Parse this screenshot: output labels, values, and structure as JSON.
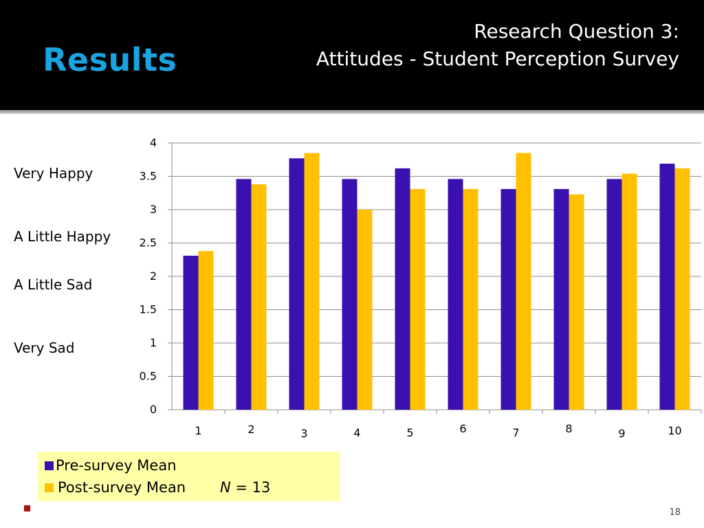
{
  "slide": {
    "title": "Results",
    "subtitle_line1": "Research Question 3:",
    "subtitle_line2": "Attitudes - Student Perception Survey",
    "page_number": "18",
    "n_label": "N",
    "n_value": " = 13"
  },
  "scale_labels": [
    "Very Happy",
    "A Little Happy",
    "A  Little Sad",
    "Very Sad"
  ],
  "colors": {
    "pre": "#3a10b0",
    "post": "#ffc000",
    "header_bg": "#000000",
    "title": "#1aa3e0",
    "legend_bg": "#ffffa8"
  },
  "chart_data": {
    "type": "bar",
    "categories": [
      "1",
      "2",
      "3",
      "4",
      "5",
      "6",
      "7",
      "8",
      "9",
      "10"
    ],
    "series": [
      {
        "name": "Pre-survey Mean",
        "values": [
          2.31,
          3.46,
          3.77,
          3.46,
          3.62,
          3.46,
          3.31,
          3.31,
          3.46,
          3.69
        ]
      },
      {
        "name": "Post-survey Mean",
        "values": [
          2.38,
          3.38,
          3.85,
          3.0,
          3.31,
          3.31,
          3.85,
          3.23,
          3.54,
          3.62
        ]
      }
    ],
    "yticks": [
      "0",
      "0.5",
      "1",
      "1.5",
      "2",
      "2.5",
      "3",
      "3.5",
      "4"
    ],
    "ylim": [
      0,
      4
    ],
    "grid": true,
    "legend": "bottom-left"
  }
}
